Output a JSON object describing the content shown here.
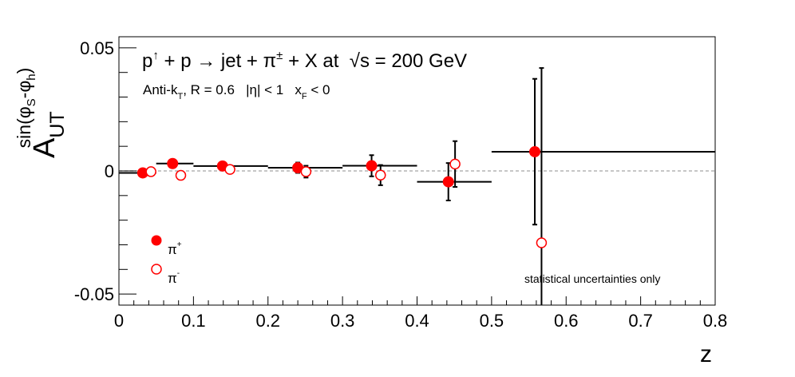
{
  "chart_data": {
    "type": "scatter",
    "title": "p↑ + p → jet + π± + X at √s = 200 GeV",
    "title_parts": {
      "p1": "p",
      "spin": "↑",
      "mid1": " + p ",
      "arrow": "→",
      "mid2": " jet + π",
      "pm": "±",
      "mid3": " + X at  ",
      "sqrt": "√",
      "end": "s = 200 GeV"
    },
    "subtitle_parts": {
      "a": "Anti-k",
      "a_sub": "T",
      "b": ", R = 0.6   |η| < 1   x",
      "b_sub": "F",
      "c": " < 0"
    },
    "xlabel": "z",
    "ylabel_parts": {
      "base": "A",
      "sub": "UT",
      "sup_a": "sin(φ",
      "sup_a_sub": "S",
      "sup_b": "-φ",
      "sup_b_sub": "h",
      "sup_c": ")"
    },
    "xlim": [
      0,
      0.8
    ],
    "ylim": [
      -0.0545,
      0.0545
    ],
    "xticks": [
      0,
      0.1,
      0.2,
      0.3,
      0.4,
      0.5,
      0.6,
      0.7,
      0.8
    ],
    "xtick_labels": [
      "0",
      "0.1",
      "0.2",
      "0.3",
      "0.4",
      "0.5",
      "0.6",
      "0.7",
      "0.8"
    ],
    "yticks": [
      -0.05,
      0,
      0.05
    ],
    "ytick_labels": [
      "-0.05",
      "0",
      "0.05"
    ],
    "reference_line": 0,
    "annotation": "statistical uncertainties only",
    "legend_position": "bottom-left",
    "colors": {
      "pi_plus": "#ff0000",
      "pi_minus": "#ff0000",
      "errorbar": "#000000",
      "annotation": "#ff0000",
      "zero_line": "#b4b4b4"
    },
    "series": [
      {
        "name": "π+",
        "legend_base": "π",
        "legend_sup": "+",
        "marker": "filled-circle",
        "points": [
          {
            "x": 0.032,
            "y": -0.0008,
            "xerr": [
              0.0,
              0.05
            ],
            "yerr": 0.0008
          },
          {
            "x": 0.072,
            "y": 0.003,
            "xerr": [
              0.05,
              0.1
            ],
            "yerr": 0.0009
          },
          {
            "x": 0.139,
            "y": 0.002,
            "xerr": [
              0.1,
              0.2
            ],
            "yerr": 0.0011
          },
          {
            "x": 0.24,
            "y": 0.0013,
            "xerr": [
              0.2,
              0.3
            ],
            "yerr": 0.0021
          },
          {
            "x": 0.339,
            "y": 0.0021,
            "xerr": [
              0.3,
              0.4
            ],
            "yerr": 0.0043
          },
          {
            "x": 0.442,
            "y": -0.0044,
            "xerr": [
              0.4,
              0.5
            ],
            "yerr": 0.0076
          },
          {
            "x": 0.558,
            "y": 0.0078,
            "xerr": [
              0.5,
              0.8
            ],
            "yerr": 0.0296
          }
        ]
      },
      {
        "name": "π-",
        "legend_base": "π",
        "legend_sup": "-",
        "marker": "open-circle",
        "points": [
          {
            "x": 0.043,
            "y": -0.0003,
            "yerr": 0.0009
          },
          {
            "x": 0.083,
            "y": -0.0018,
            "yerr": 0.001
          },
          {
            "x": 0.149,
            "y": 0.0006,
            "yerr": 0.0011
          },
          {
            "x": 0.251,
            "y": -0.0003,
            "yerr": 0.0024
          },
          {
            "x": 0.351,
            "y": -0.0017,
            "yerr": 0.0041
          },
          {
            "x": 0.451,
            "y": 0.0028,
            "yerr": 0.0093
          },
          {
            "x": 0.567,
            "y": -0.0292,
            "yerr": 0.071
          }
        ]
      }
    ]
  }
}
